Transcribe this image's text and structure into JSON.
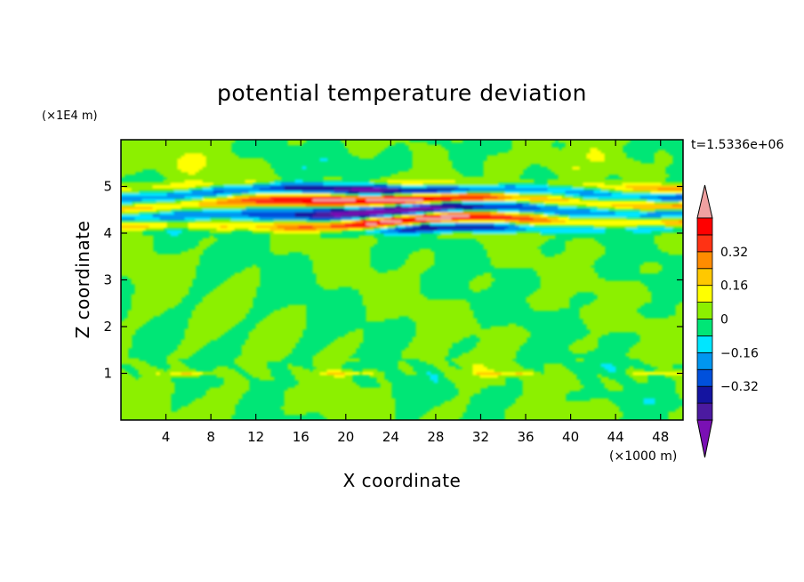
{
  "chart_data": {
    "type": "heatmap",
    "title": "potential temperature deviation",
    "xlabel": "X coordinate",
    "ylabel": "Z coordinate",
    "x_unit": "(×1000 m)",
    "y_unit": "(×1E4 m)",
    "time_label": "t=1.5336e+06",
    "xlim": [
      0,
      50
    ],
    "ylim": [
      0,
      6
    ],
    "x_ticks": [
      4,
      8,
      12,
      16,
      20,
      24,
      28,
      32,
      36,
      40,
      44,
      48
    ],
    "x_tick_labels": [
      "4",
      "8",
      "12",
      "16",
      "20",
      "24",
      "28",
      "32",
      "36",
      "40",
      "44",
      "48"
    ],
    "y_ticks": [
      1,
      2,
      3,
      4,
      5
    ],
    "y_tick_labels": [
      "1",
      "2",
      "3",
      "4",
      "5"
    ],
    "colorbar": {
      "levels": [
        -0.48,
        -0.4,
        -0.32,
        -0.24,
        -0.16,
        -0.08,
        0,
        0.08,
        0.16,
        0.24,
        0.32,
        0.4,
        0.48
      ],
      "tick_values": [
        0.32,
        0.16,
        0,
        -0.16,
        -0.32
      ],
      "tick_labels": [
        "0.32",
        "0.16",
        "0",
        "−0.16",
        "−0.32"
      ],
      "colors": [
        "#7a10b4",
        "#4b1aa0",
        "#1414a0",
        "#0050dc",
        "#0096f0",
        "#00e6ff",
        "#00e676",
        "#8cf000",
        "#ffff00",
        "#ffc800",
        "#ff8c00",
        "#ff3214",
        "#ff0000",
        "#f0a0a0"
      ]
    },
    "bands": [
      {
        "z_range": [
          0,
          3.7
        ],
        "description": "values near 0 (green / light green)"
      },
      {
        "z_range": [
          3.7,
          5.3
        ],
        "description": "strong alternating layers from -0.48 to 0.48"
      },
      {
        "z_range": [
          5.3,
          6
        ],
        "description": "values near 0 (green / light green)"
      }
    ]
  }
}
